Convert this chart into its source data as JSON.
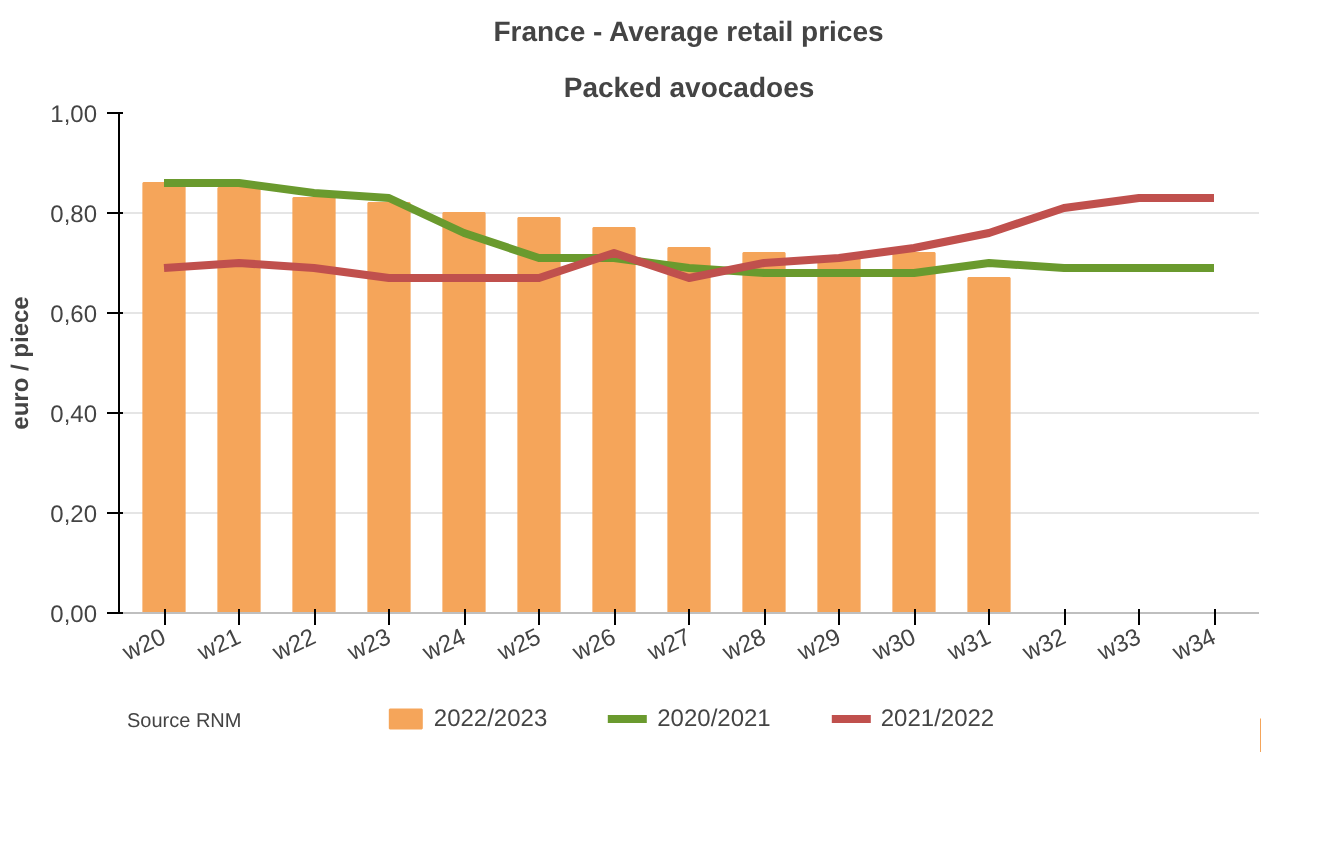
{
  "chart_data": {
    "type": "bar",
    "title": "France - Average retail prices",
    "subtitle": "Packed avocadoes",
    "ylabel": "euro / piece",
    "categories": [
      "w20",
      "w21",
      "w22",
      "w23",
      "w24",
      "w25",
      "w26",
      "w27",
      "w28",
      "w29",
      "w30",
      "w31",
      "w32",
      "w33",
      "w34"
    ],
    "series": [
      {
        "name": "2022/2023",
        "type": "bar",
        "color": "#f5a55a",
        "values": [
          0.86,
          0.85,
          0.83,
          0.82,
          0.8,
          0.79,
          0.77,
          0.73,
          0.72,
          0.71,
          0.72,
          0.67,
          null,
          null,
          null
        ]
      },
      {
        "name": "2020/2021",
        "type": "line",
        "color": "#6a9a2e",
        "values": [
          0.86,
          0.86,
          0.84,
          0.83,
          0.76,
          0.71,
          0.71,
          0.69,
          0.68,
          0.68,
          0.68,
          0.7,
          0.69,
          0.69,
          0.69
        ]
      },
      {
        "name": "2021/2022",
        "type": "line",
        "color": "#c0504d",
        "values": [
          0.69,
          0.7,
          0.69,
          0.67,
          0.67,
          0.67,
          0.72,
          0.67,
          0.7,
          0.71,
          0.73,
          0.76,
          0.81,
          0.83,
          0.83
        ]
      }
    ],
    "ylim": [
      0,
      1
    ],
    "yticks": [
      {
        "value": 0,
        "label": "0,00"
      },
      {
        "value": 0.2,
        "label": "0,20"
      },
      {
        "value": 0.4,
        "label": "0,40"
      },
      {
        "value": 0.6,
        "label": "0,60"
      },
      {
        "value": 0.8,
        "label": "0,80"
      },
      {
        "value": 1,
        "label": "1,00"
      }
    ],
    "grid": "y",
    "legend": "bottom",
    "line_style": "solid",
    "marker": "none",
    "annotations": [
      "Source RNM"
    ]
  }
}
